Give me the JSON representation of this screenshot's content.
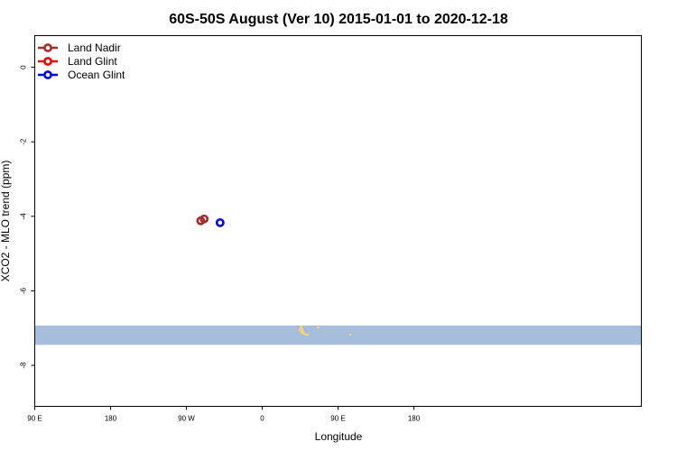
{
  "chart_data": {
    "type": "scatter",
    "title": "60S-50S August (Ver 10)   2015-01-01 to 2020-12-18",
    "xlabel": "Longitude",
    "ylabel": "XCO2 - MLO trend (ppm)",
    "xlim": [
      90,
      450
    ],
    "ylim": [
      -9.1,
      0.85
    ],
    "x_ticks": [
      {
        "value": 90,
        "label": "90 E"
      },
      {
        "value": 180,
        "label": "180"
      },
      {
        "value": 270,
        "label": "90 W"
      },
      {
        "value": 360,
        "label": "0"
      },
      {
        "value": 450,
        "label": "90 E"
      },
      {
        "value": 540,
        "label": "180"
      }
    ],
    "y_ticks": [
      {
        "value": 0,
        "label": "0"
      },
      {
        "value": -2,
        "label": "-2"
      },
      {
        "value": -4,
        "label": "-4"
      },
      {
        "value": -6,
        "label": "-6"
      },
      {
        "value": -8,
        "label": "-8"
      }
    ],
    "legend_position": "top-left",
    "series": [
      {
        "name": "Land Nadir",
        "color": "#a52a2a",
        "points": [
          {
            "x": 287,
            "y": -4.12
          },
          {
            "x": 291,
            "y": -4.07
          }
        ]
      },
      {
        "name": "Land Glint",
        "color": "#ee0000",
        "points": []
      },
      {
        "name": "Ocean Glint",
        "color": "#0000ee",
        "points": [
          {
            "x": 310,
            "y": -4.17
          }
        ]
      }
    ],
    "background_map": {
      "ocean_color": "#a6bddb",
      "land_color": "#f5d27a",
      "lat_band": "60S-50S",
      "y_range": [
        -7.45,
        -6.93
      ]
    }
  }
}
